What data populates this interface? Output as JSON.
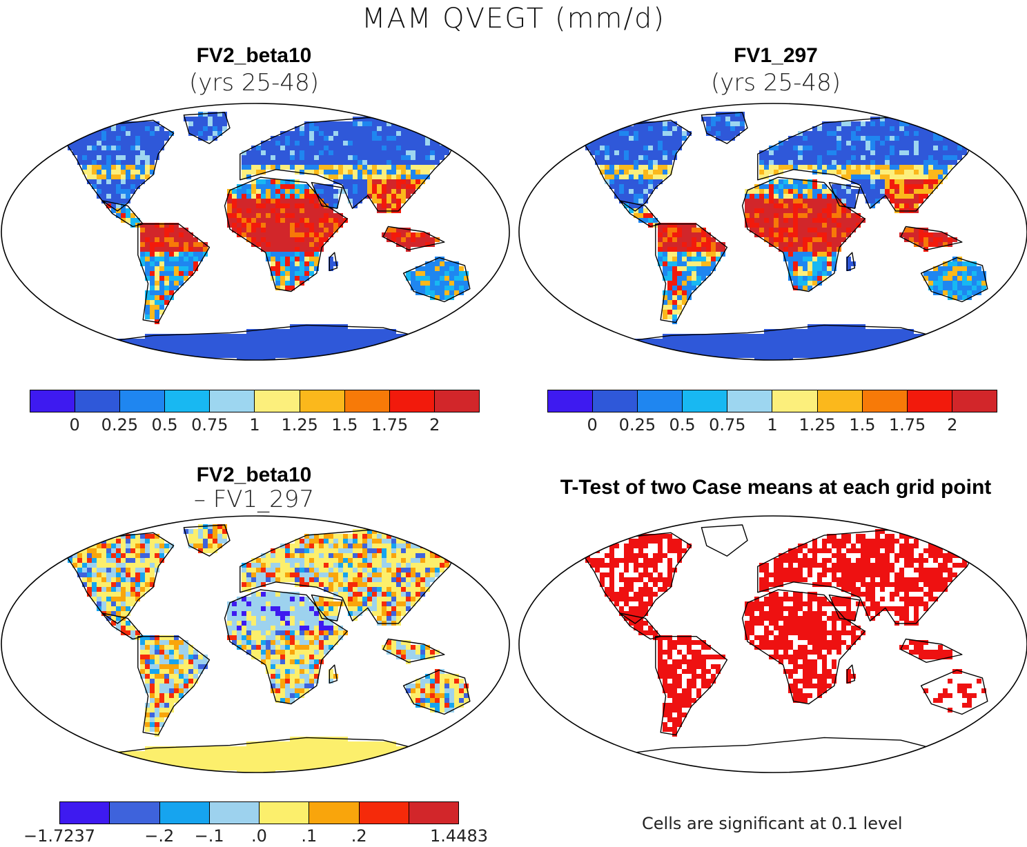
{
  "figure": {
    "title": "MAM QVEGT (mm/d)"
  },
  "panels": {
    "top_left": {
      "title": "FV2_beta10",
      "subtitle": "(yrs 25-48)"
    },
    "top_right": {
      "title": "FV1_297",
      "subtitle": "(yrs 25-48)"
    },
    "bottom_left": {
      "title": "FV2_beta10",
      "subtitle": "– FV1_297"
    },
    "bottom_right": {
      "title": "T-Test of two Case means at each grid point",
      "note": "Cells are significant at 0.1 level"
    }
  },
  "colorbar_main": {
    "colors": [
      "#3e1af0",
      "#2f58d9",
      "#1f86f0",
      "#18b8f2",
      "#9dd6f0",
      "#fcef7c",
      "#fbb81c",
      "#f77a08",
      "#f21a0c",
      "#d2262a"
    ],
    "ticks": [
      "0",
      "0.25",
      "0.5",
      "0.75",
      "1",
      "1.25",
      "1.5",
      "1.75",
      "2"
    ]
  },
  "colorbar_diff": {
    "colors": [
      "#3e1af0",
      "#3e63dc",
      "#16a4ef",
      "#9dd2ee",
      "#fcef6c",
      "#f9a50c",
      "#f52a0a",
      "#d2262a"
    ],
    "ticks": [
      "−1.7237",
      "−.2",
      "−.1",
      ".0",
      ".1",
      ".2",
      "1.4483"
    ]
  },
  "colors": {
    "land_dry": "#2f58d9",
    "antarctica_diff": "#fbe86a",
    "significant": "#ee1111",
    "tropics_wet": "#d81f1f"
  }
}
